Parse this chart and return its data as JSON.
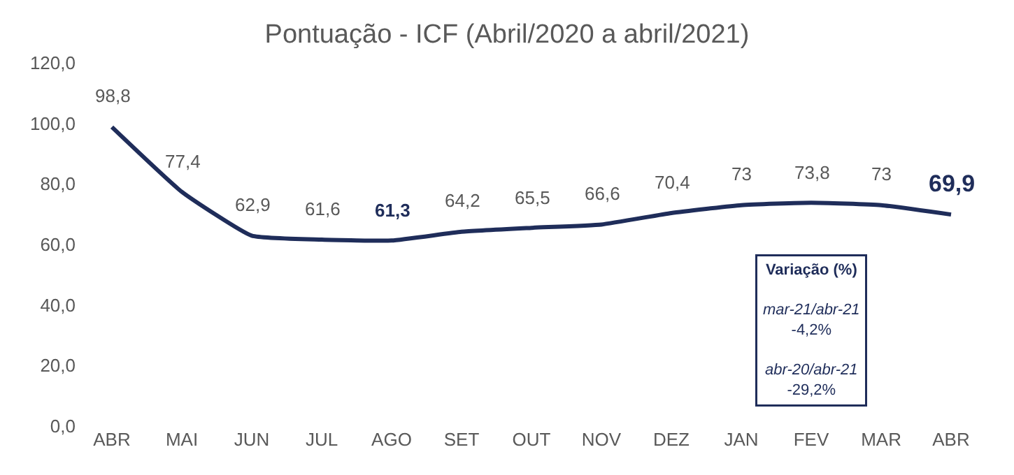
{
  "chart_data": {
    "type": "line",
    "title": "Pontuação - ICF (Abril/2020 a abril/2021)",
    "categories": [
      "ABR",
      "MAI",
      "JUN",
      "JUL",
      "AGO",
      "SET",
      "OUT",
      "NOV",
      "DEZ",
      "JAN",
      "FEV",
      "MAR",
      "ABR"
    ],
    "series": [
      {
        "color": "#1f2d5a",
        "values": [
          98.8,
          77.4,
          62.9,
          61.6,
          61.3,
          64.2,
          65.5,
          66.6,
          70.4,
          73,
          73.8,
          73,
          69.9
        ],
        "value_labels": [
          "98,8",
          "77,4",
          "62,9",
          "61,6",
          "61,3",
          "64,2",
          "65,5",
          "66,6",
          "70,4",
          "73",
          "73,8",
          "73",
          "69,9"
        ]
      }
    ],
    "ylim": [
      0,
      120
    ],
    "yticks": [
      {
        "value": 0,
        "label": "0,0"
      },
      {
        "value": 20,
        "label": "20,0"
      },
      {
        "value": 40,
        "label": "40,0"
      },
      {
        "value": 60,
        "label": "60,0"
      },
      {
        "value": 80,
        "label": "80,0"
      },
      {
        "value": 100,
        "label": "100,0"
      },
      {
        "value": 120,
        "label": "120,0"
      }
    ],
    "legend": false,
    "marker": "none",
    "line_style": "solid",
    "annotations": [
      "Variação (%)",
      "mar-21/abr-21",
      "-4,2%",
      "abr-20/abr-21",
      "-29,2%"
    ]
  }
}
